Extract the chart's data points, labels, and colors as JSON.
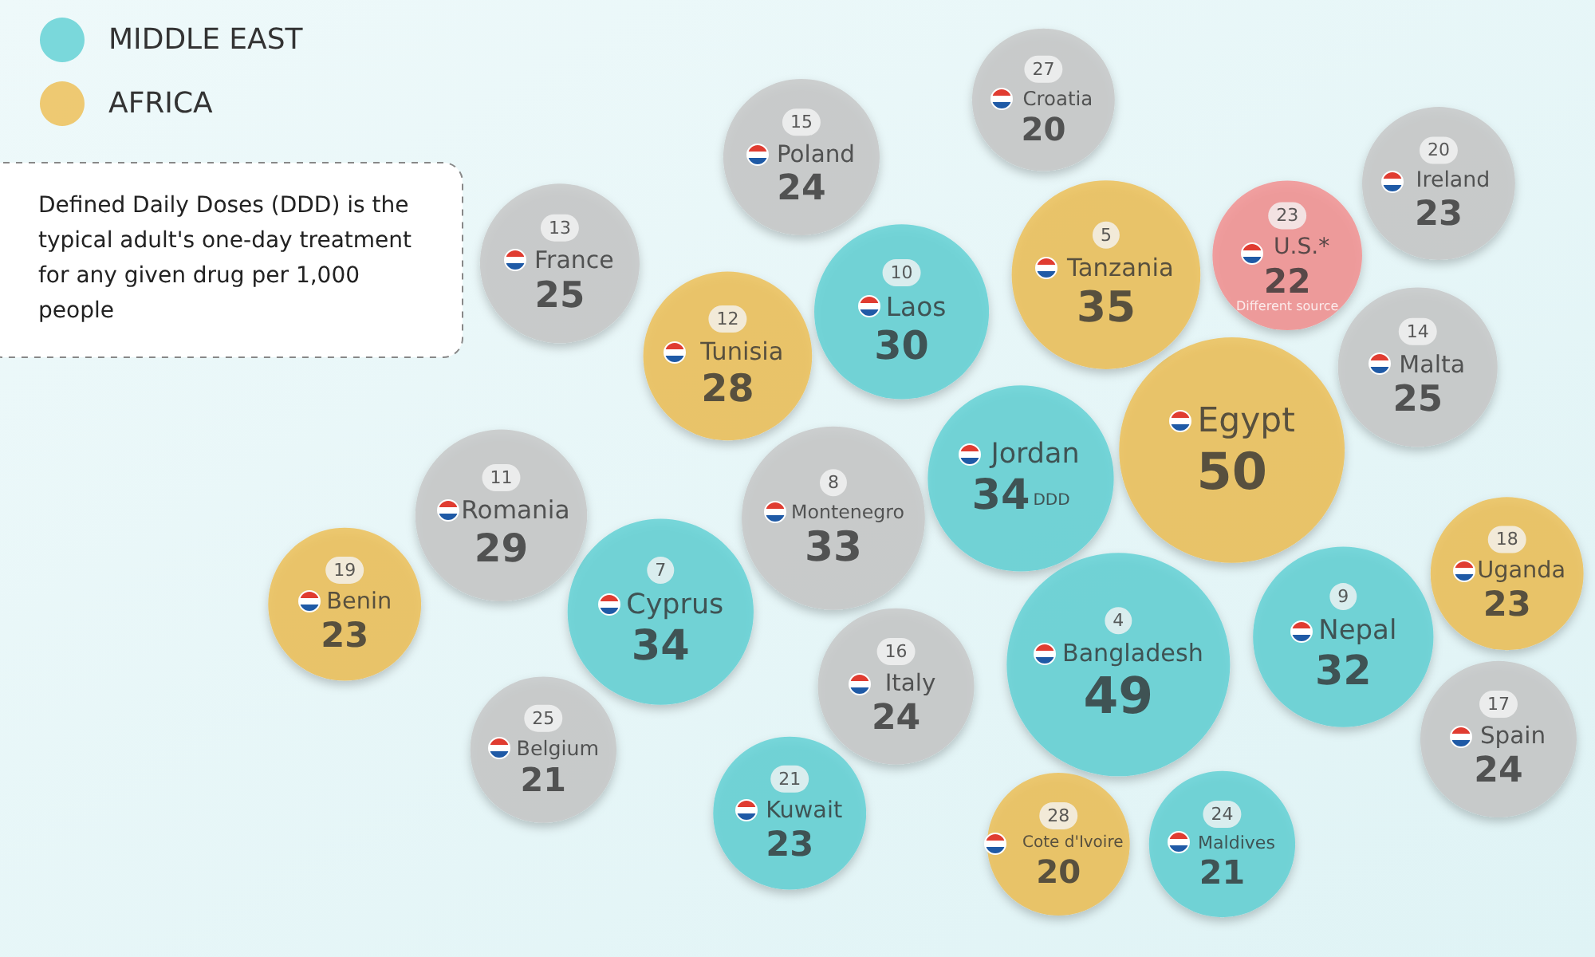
{
  "chart_data": {
    "type": "other",
    "legend": "top left",
    "data_labels": true,
    "ylabel": "DDD",
    "categories": [
      "Jordan",
      "Egypt",
      "Montenegro",
      "Bangladesh",
      "Laos",
      "Tanzania",
      "Italy",
      "Tunisia",
      "Nepal",
      "Cyprus",
      "U.S.*",
      "Malta",
      "Romania",
      "Uganda",
      "Poland",
      "Kuwait",
      "France",
      "Cote d'Ivoire",
      "Croatia",
      "Maldives",
      "Ireland",
      "Spain",
      "Belgium",
      "Benin"
    ],
    "series": [
      {
        "name": "MIDDLE EAST",
        "color": "#5ccfd3",
        "values": [
          34,
          null,
          null,
          49,
          30,
          null,
          null,
          null,
          32,
          34,
          null,
          null,
          null,
          null,
          null,
          23,
          null,
          null,
          null,
          21,
          null,
          null,
          null,
          null
        ]
      },
      {
        "name": "AFRICA",
        "color": "#eebd50",
        "values": [
          null,
          50,
          null,
          null,
          null,
          35,
          null,
          28,
          null,
          null,
          null,
          null,
          null,
          23,
          null,
          null,
          null,
          20,
          null,
          null,
          null,
          null,
          null,
          23
        ]
      },
      {
        "color": "#c6c6c6",
        "values": [
          null,
          null,
          33,
          null,
          null,
          null,
          24,
          null,
          null,
          null,
          null,
          25,
          29,
          null,
          24,
          null,
          25,
          null,
          20,
          null,
          23,
          24,
          21,
          null
        ]
      },
      {
        "color": "#f48c8c",
        "values": [
          null,
          null,
          null,
          null,
          null,
          null,
          null,
          null,
          null,
          null,
          22,
          null,
          null,
          null,
          null,
          null,
          null,
          null,
          null,
          null,
          null,
          null,
          null,
          null
        ]
      }
    ],
    "annotations": [
      "Defined Daily Doses (DDD) is the typical adult's one-day treatment for any given drug per 1,000 people",
      {
        "text": "8",
        "x": "Montenegro"
      },
      {
        "text": "4",
        "x": "Bangladesh"
      },
      {
        "text": "10",
        "x": "Laos"
      },
      {
        "text": "5",
        "x": "Tanzania"
      },
      {
        "text": "16",
        "x": "Italy"
      },
      {
        "text": "12",
        "x": "Tunisia"
      },
      {
        "text": "9",
        "x": "Nepal"
      },
      {
        "text": "7",
        "x": "Cyprus"
      },
      {
        "text": "23",
        "x": "U.S.*"
      },
      {
        "text": "Different source",
        "x": "U.S.*"
      },
      {
        "text": "14",
        "x": "Malta"
      },
      {
        "text": "11",
        "x": "Romania"
      },
      {
        "text": "18",
        "x": "Uganda"
      },
      {
        "text": "15",
        "x": "Poland"
      },
      {
        "text": "21",
        "x": "Kuwait"
      },
      {
        "text": "13",
        "x": "France"
      },
      {
        "text": "28",
        "x": "Cote d'Ivoire"
      },
      {
        "text": "27",
        "x": "Croatia"
      },
      {
        "text": "24",
        "x": "Maldives"
      },
      {
        "text": "20",
        "x": "Ireland"
      },
      {
        "text": "17",
        "x": "Spain"
      },
      {
        "text": "25",
        "x": "Belgium"
      },
      {
        "text": "19",
        "x": "Benin"
      }
    ]
  }
}
